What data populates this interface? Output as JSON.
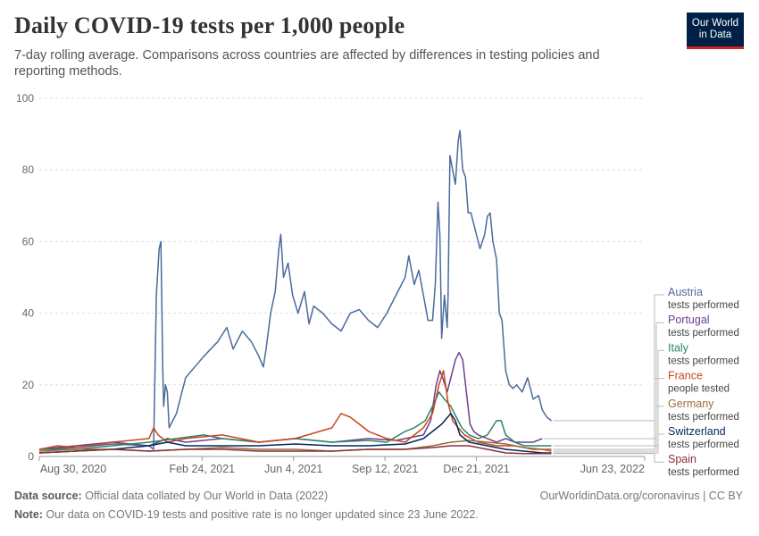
{
  "header": {
    "title": "Daily COVID-19 tests per 1,000 people",
    "subtitle": "7-day rolling average. Comparisons across countries are affected by differences in testing policies and reporting methods.",
    "logo_line1": "Our World",
    "logo_line2": "in Data"
  },
  "footer": {
    "source_label": "Data source:",
    "source_text": "Official data collated by Our World in Data (2022)",
    "credit": "OurWorldinData.org/coronavirus | CC BY",
    "note_label": "Note:",
    "note_text": "Our data on COVID-19 tests and positive rate is no longer updated since 23 June 2022."
  },
  "chart_data": {
    "type": "line",
    "title": "Daily COVID-19 tests per 1,000 people",
    "ylim": [
      0,
      100
    ],
    "yticks": [
      0,
      20,
      40,
      60,
      80,
      100
    ],
    "x_unit": "days since 2020-08-30",
    "xlim": [
      0,
      662
    ],
    "xticks": [
      {
        "day": 0,
        "label": "Aug 30, 2020"
      },
      {
        "day": 178,
        "label": "Feb 24, 2021"
      },
      {
        "day": 278,
        "label": "Jun 4, 2021"
      },
      {
        "day": 378,
        "label": "Sep 12, 2021"
      },
      {
        "day": 478,
        "label": "Dec 21, 2021"
      },
      {
        "day": 662,
        "label": "Jun 23, 2022"
      }
    ],
    "grid": true,
    "series": [
      {
        "name": "Austria",
        "metric": "tests performed",
        "color": "#4c6a9c",
        "points": [
          [
            0,
            2
          ],
          [
            40,
            2.5
          ],
          [
            80,
            3.5
          ],
          [
            120,
            3
          ],
          [
            125,
            2
          ],
          [
            128,
            45
          ],
          [
            131,
            58
          ],
          [
            133,
            60
          ],
          [
            135,
            24
          ],
          [
            136,
            14
          ],
          [
            138,
            20
          ],
          [
            140,
            18
          ],
          [
            142,
            8
          ],
          [
            150,
            12
          ],
          [
            160,
            22
          ],
          [
            170,
            25
          ],
          [
            180,
            28
          ],
          [
            195,
            32
          ],
          [
            205,
            36
          ],
          [
            212,
            30
          ],
          [
            222,
            35
          ],
          [
            232,
            32
          ],
          [
            240,
            28
          ],
          [
            245,
            25
          ],
          [
            248,
            30
          ],
          [
            250,
            34
          ],
          [
            253,
            40
          ],
          [
            258,
            46
          ],
          [
            262,
            58
          ],
          [
            264,
            62
          ],
          [
            267,
            50
          ],
          [
            272,
            54
          ],
          [
            277,
            45
          ],
          [
            283,
            40
          ],
          [
            290,
            46
          ],
          [
            295,
            37
          ],
          [
            300,
            42
          ],
          [
            310,
            40
          ],
          [
            320,
            37
          ],
          [
            330,
            35
          ],
          [
            340,
            40
          ],
          [
            350,
            41
          ],
          [
            360,
            38
          ],
          [
            370,
            36
          ],
          [
            380,
            40
          ],
          [
            390,
            45
          ],
          [
            400,
            50
          ],
          [
            404,
            56
          ],
          [
            410,
            48
          ],
          [
            415,
            52
          ],
          [
            420,
            45
          ],
          [
            425,
            38
          ],
          [
            430,
            38
          ],
          [
            433,
            48
          ],
          [
            436,
            71
          ],
          [
            438,
            62
          ],
          [
            440,
            33
          ],
          [
            443,
            45
          ],
          [
            446,
            36
          ],
          [
            447,
            45
          ],
          [
            449,
            84
          ],
          [
            452,
            80
          ],
          [
            455,
            76
          ],
          [
            458,
            88
          ],
          [
            460,
            91
          ],
          [
            463,
            80
          ],
          [
            466,
            78
          ],
          [
            469,
            68
          ],
          [
            472,
            68
          ],
          [
            477,
            63
          ],
          [
            482,
            58
          ],
          [
            487,
            62
          ],
          [
            490,
            67
          ],
          [
            493,
            68
          ],
          [
            496,
            60
          ],
          [
            500,
            55
          ],
          [
            503,
            40
          ],
          [
            506,
            38
          ],
          [
            510,
            24
          ],
          [
            514,
            20
          ],
          [
            518,
            19
          ],
          [
            522,
            20
          ],
          [
            528,
            18
          ],
          [
            534,
            22
          ],
          [
            540,
            16
          ],
          [
            546,
            17
          ],
          [
            550,
            13
          ],
          [
            555,
            11
          ],
          [
            560,
            10
          ]
        ]
      },
      {
        "name": "Portugal",
        "metric": "tests performed",
        "color": "#6d3e91",
        "points": [
          [
            0,
            2
          ],
          [
            40,
            3
          ],
          [
            80,
            4
          ],
          [
            120,
            3
          ],
          [
            140,
            5
          ],
          [
            160,
            4
          ],
          [
            200,
            5
          ],
          [
            240,
            4
          ],
          [
            280,
            5
          ],
          [
            320,
            4
          ],
          [
            360,
            5
          ],
          [
            390,
            4.5
          ],
          [
            420,
            6
          ],
          [
            428,
            10
          ],
          [
            434,
            20
          ],
          [
            438,
            24
          ],
          [
            441,
            22
          ],
          [
            446,
            18
          ],
          [
            450,
            22
          ],
          [
            455,
            27
          ],
          [
            459,
            29
          ],
          [
            463,
            27
          ],
          [
            467,
            18
          ],
          [
            471,
            9
          ],
          [
            475,
            7
          ],
          [
            480,
            6
          ],
          [
            490,
            5
          ],
          [
            500,
            4
          ],
          [
            510,
            5
          ],
          [
            520,
            4
          ],
          [
            540,
            4
          ],
          [
            550,
            5
          ]
        ]
      },
      {
        "name": "Italy",
        "metric": "tests performed",
        "color": "#2c8465",
        "points": [
          [
            0,
            2
          ],
          [
            40,
            2
          ],
          [
            80,
            3
          ],
          [
            120,
            4
          ],
          [
            150,
            5
          ],
          [
            180,
            6
          ],
          [
            200,
            5
          ],
          [
            240,
            4
          ],
          [
            280,
            5
          ],
          [
            320,
            4
          ],
          [
            360,
            4.5
          ],
          [
            380,
            4
          ],
          [
            400,
            7
          ],
          [
            410,
            8
          ],
          [
            422,
            10
          ],
          [
            432,
            15
          ],
          [
            437,
            18
          ],
          [
            443,
            16
          ],
          [
            450,
            14
          ],
          [
            456,
            11
          ],
          [
            462,
            8
          ],
          [
            470,
            6
          ],
          [
            480,
            5
          ],
          [
            490,
            6
          ],
          [
            500,
            10
          ],
          [
            505,
            10
          ],
          [
            510,
            6
          ],
          [
            520,
            4
          ],
          [
            530,
            3
          ],
          [
            545,
            3
          ],
          [
            560,
            3
          ]
        ]
      },
      {
        "name": "France",
        "metric": "people tested",
        "color": "#c64818",
        "points": [
          [
            0,
            2
          ],
          [
            20,
            3
          ],
          [
            40,
            2.5
          ],
          [
            80,
            4
          ],
          [
            120,
            5
          ],
          [
            125,
            8
          ],
          [
            130,
            6
          ],
          [
            140,
            4
          ],
          [
            160,
            5
          ],
          [
            200,
            6
          ],
          [
            220,
            5
          ],
          [
            240,
            4
          ],
          [
            280,
            5
          ],
          [
            320,
            8
          ],
          [
            330,
            12
          ],
          [
            340,
            11
          ],
          [
            350,
            9
          ],
          [
            360,
            7
          ],
          [
            380,
            5
          ],
          [
            400,
            4
          ],
          [
            420,
            8
          ],
          [
            430,
            12
          ],
          [
            437,
            20
          ],
          [
            442,
            24
          ],
          [
            447,
            15
          ],
          [
            452,
            10
          ],
          [
            458,
            8
          ],
          [
            465,
            6
          ],
          [
            480,
            4
          ],
          [
            500,
            3
          ],
          [
            520,
            3
          ],
          [
            540,
            2
          ],
          [
            560,
            2
          ]
        ]
      },
      {
        "name": "Germany",
        "metric": "tests performed",
        "color": "#996d39",
        "points": [
          [
            0,
            1.5
          ],
          [
            40,
            2
          ],
          [
            80,
            2
          ],
          [
            120,
            1.5
          ],
          [
            160,
            2
          ],
          [
            200,
            2.5
          ],
          [
            240,
            2
          ],
          [
            280,
            2
          ],
          [
            320,
            1.5
          ],
          [
            360,
            2
          ],
          [
            400,
            2
          ],
          [
            430,
            3
          ],
          [
            450,
            4
          ],
          [
            470,
            4.5
          ],
          [
            490,
            4
          ],
          [
            510,
            3.5
          ],
          [
            530,
            2.5
          ],
          [
            550,
            2
          ],
          [
            560,
            1.5
          ]
        ]
      },
      {
        "name": "Switzerland",
        "metric": "tests performed",
        "color": "#00295b",
        "points": [
          [
            0,
            1
          ],
          [
            40,
            1.5
          ],
          [
            80,
            2
          ],
          [
            120,
            3
          ],
          [
            140,
            4
          ],
          [
            160,
            3
          ],
          [
            200,
            3
          ],
          [
            240,
            3
          ],
          [
            280,
            3.5
          ],
          [
            320,
            3
          ],
          [
            360,
            3
          ],
          [
            400,
            3.5
          ],
          [
            420,
            5
          ],
          [
            440,
            9
          ],
          [
            450,
            12
          ],
          [
            455,
            10
          ],
          [
            460,
            6
          ],
          [
            470,
            4
          ],
          [
            490,
            3
          ],
          [
            510,
            2
          ],
          [
            530,
            1.5
          ],
          [
            550,
            1
          ],
          [
            560,
            1
          ]
        ]
      },
      {
        "name": "Spain",
        "metric": "tests performed",
        "color": "#883039",
        "points": [
          [
            0,
            1
          ],
          [
            40,
            1.5
          ],
          [
            80,
            2
          ],
          [
            120,
            1.5
          ],
          [
            160,
            2
          ],
          [
            200,
            2
          ],
          [
            240,
            1.5
          ],
          [
            280,
            1.5
          ],
          [
            320,
            1.5
          ],
          [
            360,
            2
          ],
          [
            400,
            2
          ],
          [
            430,
            2.5
          ],
          [
            450,
            3
          ],
          [
            470,
            3
          ],
          [
            490,
            2
          ],
          [
            510,
            1
          ],
          [
            530,
            0.8
          ],
          [
            560,
            0.8
          ]
        ]
      }
    ]
  }
}
